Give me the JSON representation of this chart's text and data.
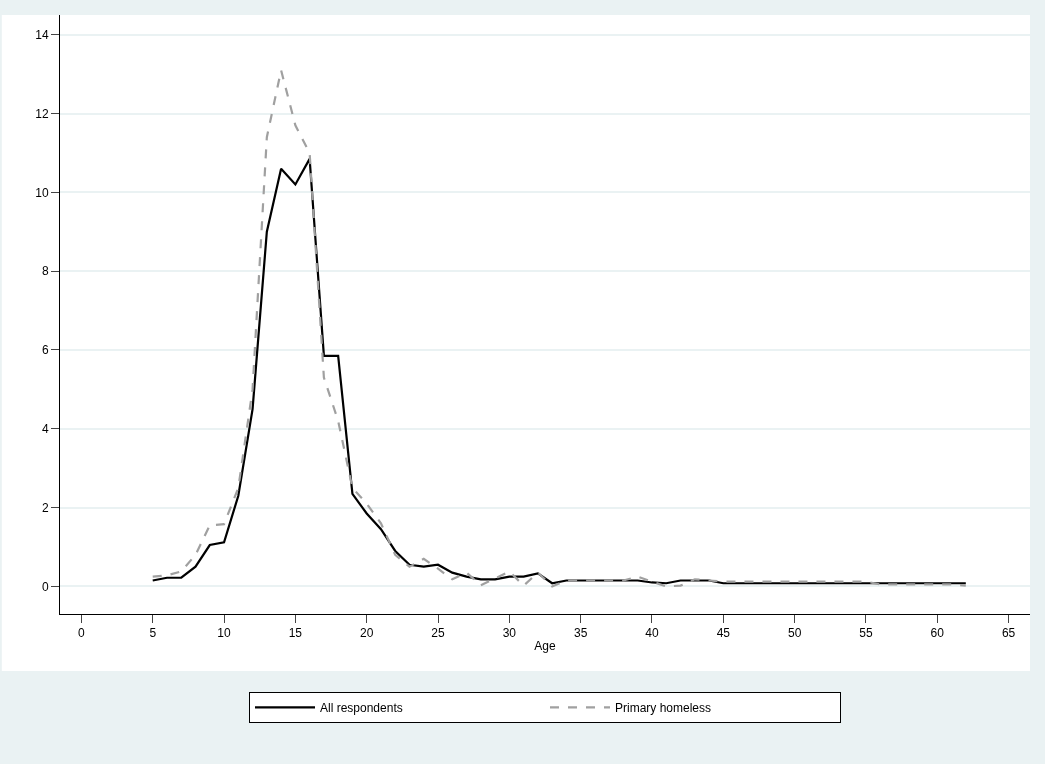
{
  "chart_data": {
    "type": "line",
    "xlabel": "Age",
    "x": [
      5,
      6,
      7,
      8,
      9,
      10,
      11,
      12,
      13,
      14,
      15,
      16,
      17,
      18,
      19,
      20,
      21,
      22,
      23,
      24,
      25,
      26,
      27,
      28,
      29,
      30,
      31,
      32,
      33,
      34,
      35,
      36,
      37,
      38,
      39,
      40,
      41,
      42,
      43,
      44,
      45,
      46,
      47,
      48,
      49,
      50,
      51,
      52,
      53,
      54,
      55,
      56,
      57,
      58,
      59,
      60,
      61,
      62
    ],
    "series": [
      {
        "name": "All respondents",
        "color": "#000000",
        "line_style": "solid",
        "values": [
          0.15,
          0.22,
          0.22,
          0.5,
          1.05,
          1.12,
          2.3,
          4.5,
          9.0,
          10.6,
          10.2,
          10.85,
          5.85,
          5.85,
          2.35,
          1.85,
          1.45,
          0.9,
          0.55,
          0.5,
          0.55,
          0.35,
          0.25,
          0.18,
          0.18,
          0.25,
          0.25,
          0.33,
          0.08,
          0.15,
          0.15,
          0.15,
          0.15,
          0.15,
          0.15,
          0.1,
          0.08,
          0.15,
          0.15,
          0.15,
          0.08,
          0.08,
          0.08,
          0.08,
          0.08,
          0.08,
          0.08,
          0.08,
          0.08,
          0.08,
          0.08,
          0.08,
          0.08,
          0.08,
          0.08,
          0.08,
          0.08,
          0.08
        ]
      },
      {
        "name": "Primary homeless",
        "color": "#a0a0a0",
        "line_style": "dashed",
        "values": [
          0.25,
          0.28,
          0.38,
          0.8,
          1.55,
          1.58,
          2.5,
          5.0,
          11.4,
          13.1,
          11.7,
          11.0,
          5.3,
          4.2,
          2.5,
          2.1,
          1.6,
          0.8,
          0.5,
          0.7,
          0.45,
          0.18,
          0.35,
          0.03,
          0.2,
          0.38,
          0.02,
          0.35,
          0.0,
          0.15,
          0.15,
          0.15,
          0.15,
          0.15,
          0.25,
          0.12,
          0.0,
          0.02,
          0.18,
          0.15,
          0.12,
          0.12,
          0.12,
          0.12,
          0.12,
          0.12,
          0.12,
          0.12,
          0.12,
          0.12,
          0.12,
          0.05,
          0.05,
          0.05,
          0.05,
          0.05,
          0.05,
          0.02
        ]
      }
    ],
    "xlim": [
      -1.5,
      66.5
    ],
    "xticks": [
      0,
      5,
      10,
      15,
      20,
      25,
      30,
      35,
      40,
      45,
      50,
      55,
      60,
      65
    ],
    "ylim": [
      -0.7,
      14.5
    ],
    "yticks": [
      0,
      2,
      4,
      6,
      8,
      10,
      12,
      14
    ],
    "grid": "y",
    "legend": "bottom"
  }
}
